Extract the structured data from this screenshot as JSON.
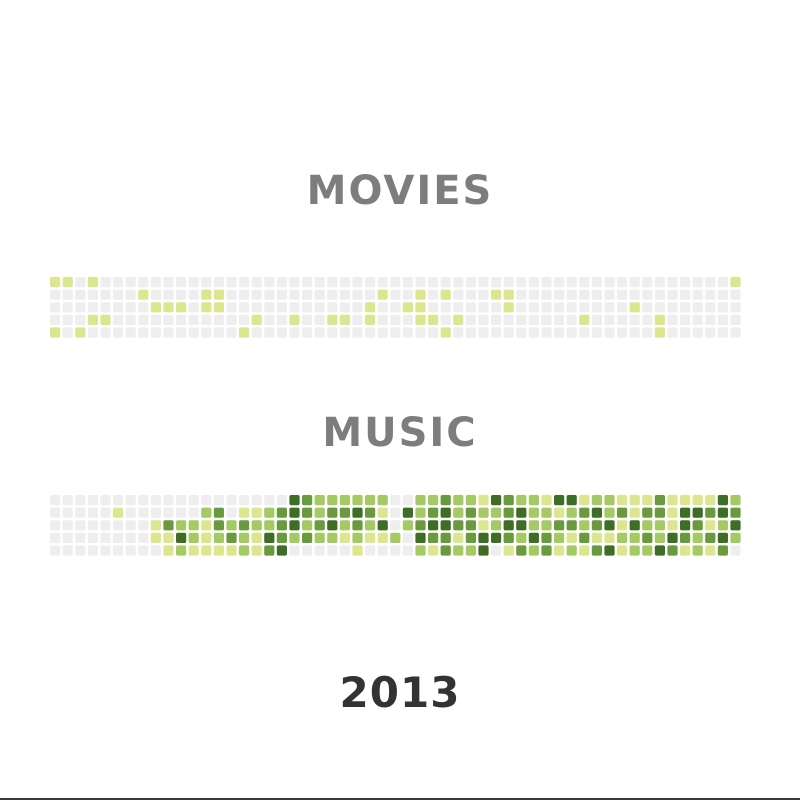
{
  "chart_data": [
    {
      "type": "heatmap",
      "title": "MOVIES",
      "rows": 5,
      "cols": 55,
      "levels": 4,
      "cells": [
        [
          1,
          1,
          0,
          1,
          0,
          0,
          0,
          0,
          0,
          0,
          0,
          0,
          0,
          0,
          0,
          0,
          0,
          0,
          0,
          0,
          0,
          0,
          0,
          0,
          0,
          0,
          0,
          0,
          0,
          0,
          0,
          0,
          0,
          0,
          0,
          0,
          0,
          0,
          0,
          0,
          0,
          0,
          0,
          0,
          0,
          0,
          0,
          0,
          0,
          0,
          0,
          0,
          0,
          0,
          1
        ],
        [
          0,
          0,
          0,
          0,
          0,
          0,
          0,
          1,
          0,
          0,
          0,
          0,
          1,
          1,
          0,
          0,
          0,
          0,
          0,
          0,
          0,
          0,
          0,
          0,
          0,
          0,
          1,
          0,
          0,
          1,
          0,
          1,
          0,
          0,
          0,
          1,
          1,
          0,
          0,
          0,
          0,
          0,
          0,
          0,
          0,
          0,
          0,
          0,
          0,
          0,
          0,
          0,
          0,
          0,
          0
        ],
        [
          0,
          0,
          0,
          0,
          0,
          0,
          0,
          0,
          1,
          1,
          1,
          0,
          1,
          1,
          0,
          0,
          0,
          0,
          0,
          0,
          0,
          0,
          0,
          0,
          0,
          1,
          0,
          0,
          1,
          1,
          0,
          0,
          0,
          0,
          0,
          0,
          1,
          0,
          0,
          0,
          0,
          0,
          0,
          0,
          0,
          0,
          1,
          0,
          0,
          0,
          0,
          0,
          0,
          0,
          0
        ],
        [
          0,
          0,
          0,
          1,
          1,
          0,
          0,
          0,
          0,
          0,
          0,
          0,
          0,
          0,
          0,
          0,
          1,
          0,
          0,
          1,
          0,
          0,
          1,
          1,
          0,
          1,
          0,
          0,
          0,
          1,
          1,
          0,
          1,
          0,
          0,
          0,
          0,
          0,
          0,
          0,
          0,
          0,
          1,
          0,
          0,
          0,
          0,
          0,
          1,
          0,
          0,
          0,
          0,
          0,
          0
        ],
        [
          1,
          0,
          1,
          0,
          0,
          0,
          0,
          0,
          0,
          0,
          0,
          0,
          0,
          0,
          0,
          1,
          0,
          0,
          0,
          0,
          0,
          0,
          0,
          0,
          0,
          0,
          0,
          0,
          0,
          0,
          0,
          1,
          0,
          0,
          0,
          0,
          0,
          0,
          0,
          0,
          0,
          0,
          0,
          0,
          0,
          0,
          0,
          0,
          1,
          0,
          0,
          0,
          0,
          0,
          0
        ]
      ],
      "colors": [
        "#eeeeee",
        "#dbe68e",
        "#a5c963",
        "#6a9a3e",
        "#3e6d26"
      ]
    },
    {
      "type": "heatmap",
      "title": "MUSIC",
      "rows": 5,
      "cols": 55,
      "levels": 4,
      "cells": [
        [
          0,
          0,
          0,
          0,
          0,
          0,
          0,
          0,
          0,
          0,
          0,
          0,
          0,
          0,
          0,
          0,
          0,
          0,
          0,
          4,
          3,
          2,
          2,
          2,
          2,
          2,
          2,
          0,
          0,
          2,
          2,
          3,
          2,
          2,
          1,
          4,
          3,
          2,
          2,
          1,
          4,
          4,
          1,
          2,
          2,
          1,
          1,
          1,
          3,
          1,
          1,
          1,
          1,
          4,
          2
        ],
        [
          0,
          0,
          0,
          0,
          0,
          1,
          0,
          0,
          0,
          0,
          0,
          0,
          2,
          3,
          0,
          1,
          1,
          2,
          3,
          4,
          3,
          2,
          3,
          3,
          4,
          3,
          1,
          0,
          4,
          2,
          3,
          4,
          2,
          3,
          2,
          2,
          3,
          4,
          2,
          2,
          1,
          2,
          3,
          4,
          2,
          3,
          1,
          3,
          3,
          1,
          4,
          4,
          3,
          4,
          3
        ],
        [
          0,
          0,
          0,
          0,
          0,
          0,
          0,
          0,
          1,
          3,
          2,
          2,
          1,
          3,
          2,
          3,
          2,
          2,
          3,
          4,
          2,
          3,
          4,
          2,
          3,
          2,
          4,
          0,
          2,
          3,
          4,
          4,
          3,
          3,
          1,
          2,
          4,
          4,
          2,
          2,
          3,
          3,
          2,
          3,
          4,
          1,
          4,
          2,
          2,
          1,
          4,
          3,
          1,
          2,
          4
        ],
        [
          0,
          0,
          0,
          0,
          0,
          0,
          0,
          0,
          1,
          1,
          4,
          2,
          1,
          2,
          3,
          2,
          1,
          4,
          3,
          2,
          3,
          2,
          2,
          1,
          2,
          1,
          1,
          2,
          0,
          4,
          3,
          3,
          1,
          3,
          4,
          4,
          3,
          2,
          4,
          3,
          2,
          1,
          3,
          1,
          1,
          2,
          2,
          3,
          2,
          4,
          3,
          2,
          3,
          4,
          2
        ],
        [
          0,
          0,
          0,
          0,
          0,
          0,
          0,
          0,
          0,
          1,
          2,
          1,
          1,
          1,
          1,
          2,
          1,
          3,
          4,
          0,
          0,
          0,
          0,
          0,
          1,
          0,
          0,
          0,
          0,
          2,
          1,
          3,
          2,
          2,
          4,
          0,
          1,
          3,
          2,
          3,
          1,
          2,
          1,
          3,
          4,
          1,
          2,
          2,
          4,
          3,
          1,
          2,
          1,
          3,
          0
        ]
      ],
      "colors": [
        "#eeeeee",
        "#dbe68e",
        "#a5c963",
        "#6a9a3e",
        "#3e6d26"
      ]
    }
  ],
  "footer": {
    "year": "2013"
  }
}
